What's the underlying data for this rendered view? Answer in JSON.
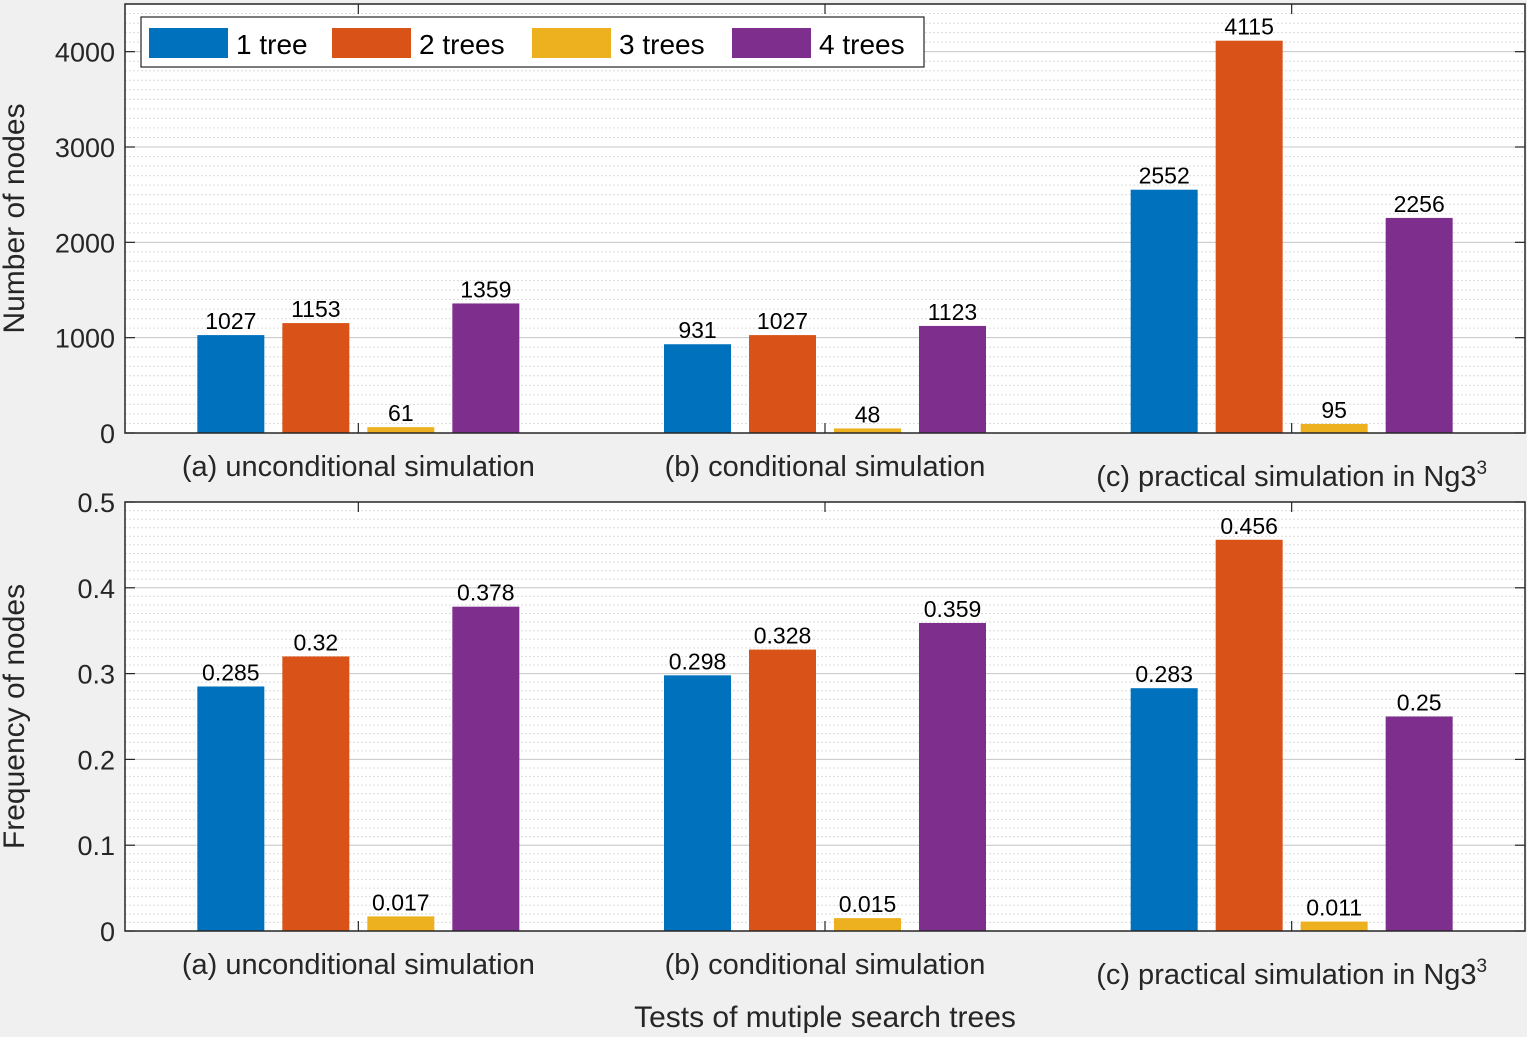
{
  "chart_data": [
    {
      "type": "bar",
      "categories": [
        "(a) unconditional simulation",
        "(b) conditional simulation",
        "(c) practical simulation in Ng3"
      ],
      "category_superscripts": [
        "",
        "",
        "3"
      ],
      "series": [
        {
          "name": "1 tree",
          "color": "#0072BD",
          "values": [
            1027,
            931,
            2552
          ]
        },
        {
          "name": "2 trees",
          "color": "#D95319",
          "values": [
            1153,
            1027,
            4115
          ]
        },
        {
          "name": "3 trees",
          "color": "#EDB120",
          "values": [
            61,
            48,
            95
          ]
        },
        {
          "name": "4 trees",
          "color": "#7E2F8E",
          "values": [
            1359,
            1123,
            2256
          ]
        }
      ],
      "value_labels": [
        [
          "1027",
          "931",
          "2552"
        ],
        [
          "1153",
          "1027",
          "4115"
        ],
        [
          "61",
          "48",
          "95"
        ],
        [
          "1359",
          "1123",
          "2256"
        ]
      ],
      "ylabel": "Number of nodes",
      "xlabel": "",
      "ylim": [
        0,
        4500
      ],
      "yticks": [
        0,
        1000,
        2000,
        3000,
        4000
      ],
      "ytick_labels": [
        "0",
        "1000",
        "2000",
        "3000",
        "4000"
      ],
      "minor_grid": true,
      "legend_position": "top-left",
      "legend_orientation": "horizontal"
    },
    {
      "type": "bar",
      "categories": [
        "(a) unconditional simulation",
        "(b) conditional simulation",
        "(c) practical simulation in Ng3"
      ],
      "category_superscripts": [
        "",
        "",
        "3"
      ],
      "series": [
        {
          "name": "1 tree",
          "color": "#0072BD",
          "values": [
            0.285,
            0.298,
            0.283
          ]
        },
        {
          "name": "2 trees",
          "color": "#D95319",
          "values": [
            0.32,
            0.328,
            0.456
          ]
        },
        {
          "name": "3 trees",
          "color": "#EDB120",
          "values": [
            0.017,
            0.015,
            0.011
          ]
        },
        {
          "name": "4 trees",
          "color": "#7E2F8E",
          "values": [
            0.378,
            0.359,
            0.25
          ]
        }
      ],
      "value_labels": [
        [
          "0.285",
          "0.298",
          "0.283"
        ],
        [
          "0.32",
          "0.328",
          "0.456"
        ],
        [
          "0.017",
          "0.015",
          "0.011"
        ],
        [
          "0.378",
          "0.359",
          "0.25"
        ]
      ],
      "ylabel": "Frequency of nodes",
      "xlabel": "Tests of mutiple search trees",
      "ylim": [
        0,
        0.5
      ],
      "yticks": [
        0,
        0.1,
        0.2,
        0.3,
        0.4,
        0.5
      ],
      "ytick_labels": [
        "0",
        "0.1",
        "0.2",
        "0.3",
        "0.4",
        "0.5"
      ],
      "minor_grid": true,
      "legend_position": "none"
    }
  ],
  "colors": {
    "figure_background": "#f0f0f0",
    "axes_background": "#ffffff",
    "axis_line": "#262626",
    "grid": "#dcdcdc"
  }
}
